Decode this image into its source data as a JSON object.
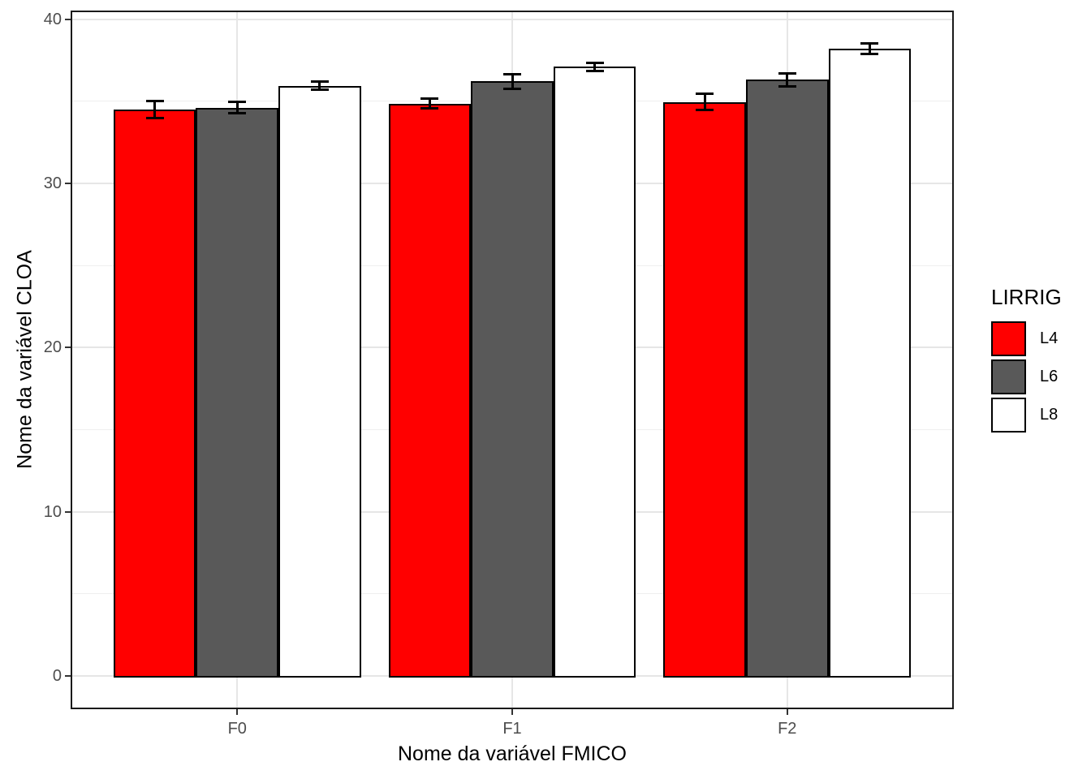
{
  "chart_data": {
    "type": "bar",
    "title": "",
    "xlabel": "Nome da variável FMICO",
    "ylabel": "Nome da variável CLOA",
    "categories": [
      "F0",
      "F1",
      "F2"
    ],
    "series": [
      {
        "name": "L4",
        "color": "#ff0000",
        "values": [
          34.5,
          34.85,
          34.95
        ],
        "errors": [
          0.5,
          0.3,
          0.5
        ]
      },
      {
        "name": "L6",
        "color": "#595959",
        "values": [
          34.6,
          36.2,
          36.3
        ],
        "errors": [
          0.35,
          0.45,
          0.4
        ]
      },
      {
        "name": "L8",
        "color": "#ffffff",
        "values": [
          35.95,
          37.1,
          38.2
        ],
        "errors": [
          0.25,
          0.25,
          0.3
        ]
      }
    ],
    "legend_title": "LIRRIG",
    "legend_position": "right",
    "y_ticks": [
      0,
      10,
      20,
      30,
      40
    ],
    "y_minor_ticks": [
      5,
      15,
      25,
      35
    ],
    "ylim": [
      0,
      40
    ],
    "grid": true,
    "bar_border_color": "#000000",
    "error_bar_color": "#000000",
    "gridline_major_color": "#e6e6e6",
    "gridline_minor_color": "#efefef",
    "axis_text_color": "#4d4d4d",
    "axis_title_color": "#000000",
    "panel_border_color": "#1a1a1a",
    "background_color": "#ffffff"
  }
}
